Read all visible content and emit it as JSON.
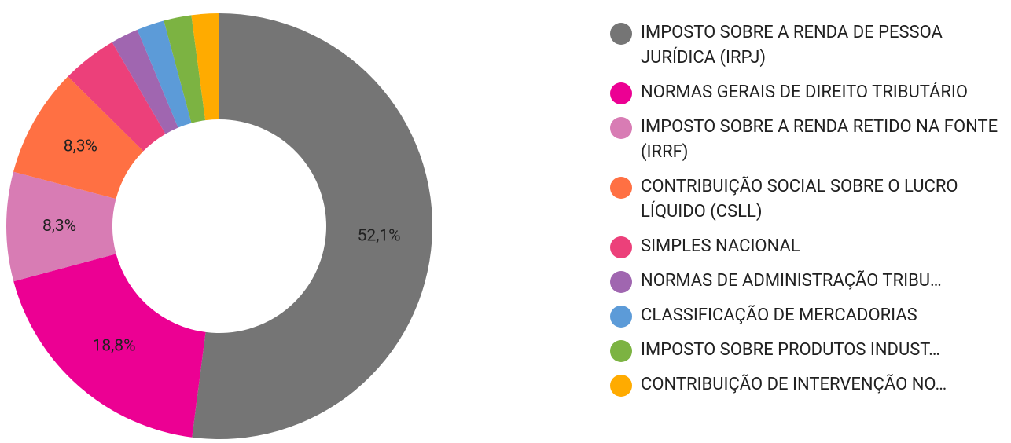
{
  "chart_data": {
    "type": "donut",
    "categories": [
      "IMPOSTO SOBRE A RENDA DE PESSOA JURÍDICA (IRPJ)",
      "NORMAS GERAIS DE DIREITO TRIBUTÁRIO",
      "IMPOSTO SOBRE A RENDA RETIDO NA FONTE (IRRF)",
      "CONTRIBUIÇÃO SOCIAL SOBRE O LUCRO LÍQUIDO (CSLL)",
      "SIMPLES NACIONAL",
      "NORMAS DE ADMINISTRAÇÃO TRIBU…",
      "CLASSIFICAÇÃO DE MERCADORIAS",
      "IMPOSTO SOBRE PRODUTOS INDUST…",
      "CONTRIBUIÇÃO DE INTERVENÇÃO NO…"
    ],
    "values": [
      52.1,
      18.8,
      8.3,
      8.3,
      4.2,
      2.1,
      2.1,
      2.1,
      2.1
    ],
    "value_labels": [
      "52,1%",
      "18,8%",
      "8,3%",
      "8,3%",
      null,
      null,
      null,
      null,
      null
    ],
    "colors": [
      "#757575",
      "#ec0093",
      "#d87cb4",
      "#ff7043",
      "#ec407a",
      "#a066b0",
      "#5c9bd8",
      "#7cb342",
      "#ffab00"
    ],
    "legend": "right"
  }
}
